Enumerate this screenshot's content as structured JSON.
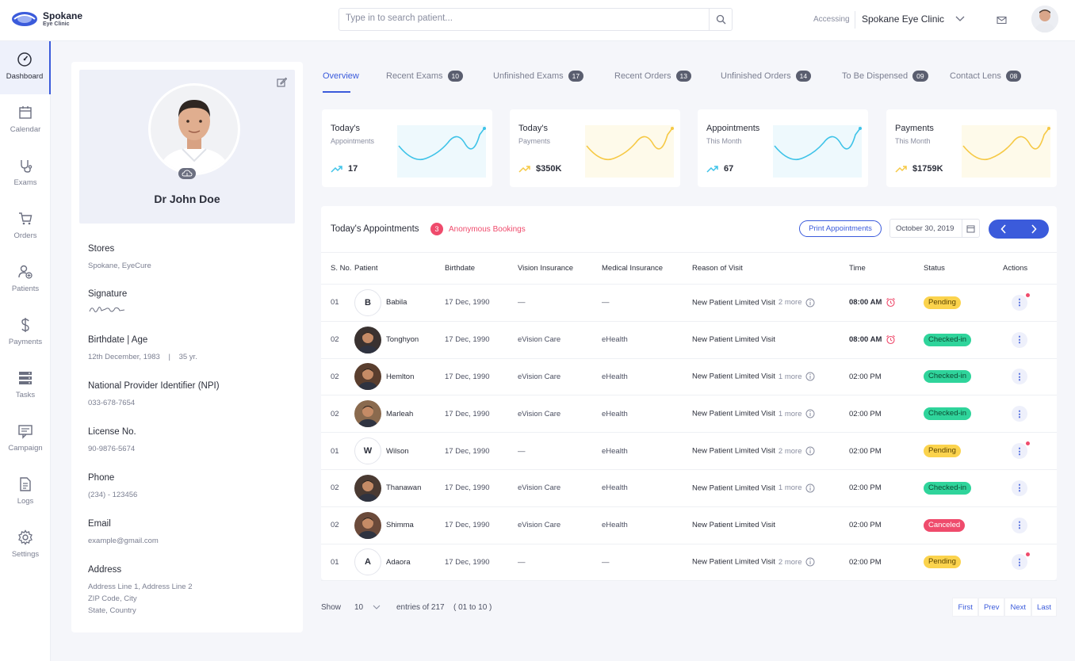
{
  "header": {
    "brand_name": "Spokane",
    "brand_sub": "Eye Clinic",
    "search_placeholder": "Type in to search patient...",
    "accessing_label": "Accessing",
    "clinic_name": "Spokane Eye Clinic"
  },
  "sidebar": {
    "items": [
      {
        "label": "Dashboard",
        "icon": "dashboard-icon"
      },
      {
        "label": "Calendar",
        "icon": "calendar-icon"
      },
      {
        "label": "Exams",
        "icon": "exams-icon"
      },
      {
        "label": "Orders",
        "icon": "cart-icon"
      },
      {
        "label": "Patients",
        "icon": "patients-icon"
      },
      {
        "label": "Payments",
        "icon": "dollar-icon"
      },
      {
        "label": "Tasks",
        "icon": "tasks-icon"
      },
      {
        "label": "Campaign",
        "icon": "campaign-icon"
      },
      {
        "label": "Logs",
        "icon": "logs-icon"
      },
      {
        "label": "Settings",
        "icon": "settings-icon"
      }
    ]
  },
  "profile": {
    "name": "Dr John Doe",
    "stores_label": "Stores",
    "stores_value": "Spokane, EyeCure",
    "signature_label": "Signature",
    "birthdate_label": "Birthdate | Age",
    "birthdate_value": "12th December, 1983",
    "age_value": "35 yr.",
    "npi_label": "National Provider Identifier (NPI)",
    "npi_value": "033-678-7654",
    "license_label": "License No.",
    "license_value": "90-9876-5674",
    "phone_label": "Phone",
    "phone_value": "(234) - 123456",
    "email_label": "Email",
    "email_value": "example@gmail.com",
    "address_label": "Address",
    "address_line1": "Address Line 1, Address Line 2",
    "address_line2": "ZIP Code, City",
    "address_line3": "State, Country"
  },
  "tabs": [
    {
      "label": "Overview",
      "count": ""
    },
    {
      "label": "Recent Exams",
      "count": "10"
    },
    {
      "label": "Unfinished Exams",
      "count": "17"
    },
    {
      "label": "Recent Orders",
      "count": "13"
    },
    {
      "label": "Unfinished Orders",
      "count": "14"
    },
    {
      "label": "To Be Dispensed",
      "count": "09"
    },
    {
      "label": "Contact Lens",
      "count": "08"
    }
  ],
  "stats": [
    {
      "title": "Today's",
      "sub": "Appointments",
      "value": "17",
      "color": "#3ec3e8"
    },
    {
      "title": "Today's",
      "sub": "Payments",
      "value": "$350K",
      "color": "#f6c945"
    },
    {
      "title": "Appointments",
      "sub": "This Month",
      "value": "67",
      "color": "#3ec3e8"
    },
    {
      "title": "Payments",
      "sub": "This Month",
      "value": "$1759K",
      "color": "#f6c945"
    }
  ],
  "appointments": {
    "title": "Today's Appointments",
    "anon_count": "3",
    "anon_label": "Anonymous Bookings",
    "print_label": "Print Appointments",
    "date": "October 30, 2019",
    "columns": {
      "sno": "S. No.",
      "patient": "Patient",
      "birthdate": "Birthdate",
      "vision": "Vision Insurance",
      "medical": "Medical Insurance",
      "reason": "Reason of Visit",
      "time": "Time",
      "status": "Status",
      "actions": "Actions"
    },
    "rows": [
      {
        "sno": "01",
        "initial": "B",
        "name": "Babila",
        "birthdate": "17 Dec, 1990",
        "vision": "—",
        "medical": "—",
        "reason": "New Patient Limited Visit",
        "more": "2 more",
        "time": "08:00 AM",
        "status": "Pending"
      },
      {
        "sno": "02",
        "initial": "",
        "name": "Tonghyon",
        "birthdate": "17 Dec, 1990",
        "vision": "eVision Care",
        "medical": "eHealth",
        "reason": "New Patient Limited Visit",
        "more": "",
        "time": "08:00 AM",
        "status": "Checked-in"
      },
      {
        "sno": "02",
        "initial": "",
        "name": "Hemlton",
        "birthdate": "17 Dec, 1990",
        "vision": "eVision Care",
        "medical": "eHealth",
        "reason": "New Patient Limited Visit",
        "more": "1 more",
        "time": "02:00 PM",
        "status": "Checked-in"
      },
      {
        "sno": "02",
        "initial": "",
        "name": "Marleah",
        "birthdate": "17 Dec, 1990",
        "vision": "eVision Care",
        "medical": "eHealth",
        "reason": "New Patient Limited Visit",
        "more": "1 more",
        "time": "02:00 PM",
        "status": "Checked-in"
      },
      {
        "sno": "01",
        "initial": "W",
        "name": "Wilson",
        "birthdate": "17 Dec, 1990",
        "vision": "—",
        "medical": "eHealth",
        "reason": "New Patient Limited Visit",
        "more": "2 more",
        "time": "02:00 PM",
        "status": "Pending"
      },
      {
        "sno": "02",
        "initial": "",
        "name": "Thanawan",
        "birthdate": "17 Dec, 1990",
        "vision": "eVision Care",
        "medical": "eHealth",
        "reason": "New Patient Limited Visit",
        "more": "1 more",
        "time": "02:00 PM",
        "status": "Checked-in"
      },
      {
        "sno": "02",
        "initial": "",
        "name": "Shimma",
        "birthdate": "17 Dec, 1990",
        "vision": "eVision Care",
        "medical": "eHealth",
        "reason": "New Patient Limited Visit",
        "more": "",
        "time": "02:00 PM",
        "status": "Canceled"
      },
      {
        "sno": "01",
        "initial": "A",
        "name": "Adaora",
        "birthdate": "17 Dec, 1990",
        "vision": "—",
        "medical": "—",
        "reason": "New Patient Limited Visit",
        "more": "2 more",
        "time": "02:00 PM",
        "status": "Pending"
      }
    ]
  },
  "footer": {
    "show_label": "Show",
    "page_size": "10",
    "entries_label": "entries of 217",
    "range_label": "( 01 to 10 )",
    "first": "First",
    "prev": "Prev",
    "next": "Next",
    "last": "Last"
  },
  "colors": {
    "accent": "#3b5bdb",
    "pending": "#fbd34d",
    "checked_in": "#2fd49b",
    "canceled": "#ef4b6c"
  }
}
